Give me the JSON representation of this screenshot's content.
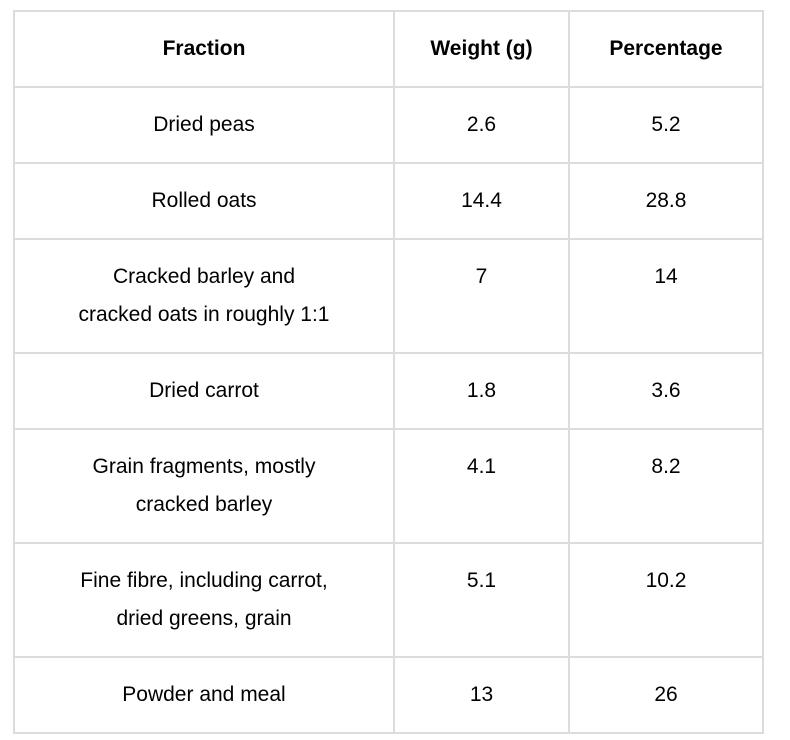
{
  "page": {
    "background_color": "#ffffff",
    "text_color": "#000000",
    "border_color": "#dcdcdc"
  },
  "table": {
    "columns": {
      "fraction": "Fraction",
      "weight": "Weight (g)",
      "percentage": "Percentage"
    },
    "rows": [
      {
        "fraction": "Dried peas",
        "weight": "2.6",
        "percentage": "5.2"
      },
      {
        "fraction": "Rolled oats",
        "weight": "14.4",
        "percentage": "28.8"
      },
      {
        "fraction": "Cracked barley and\ncracked oats in roughly 1:1",
        "weight": "7",
        "percentage": "14"
      },
      {
        "fraction": "Dried carrot",
        "weight": "1.8",
        "percentage": "3.6"
      },
      {
        "fraction": "Grain fragments, mostly\ncracked barley",
        "weight": "4.1",
        "percentage": "8.2"
      },
      {
        "fraction": "Fine fibre, including carrot,\ndried greens, grain",
        "weight": "5.1",
        "percentage": "10.2"
      },
      {
        "fraction": "Powder and meal",
        "weight": "13",
        "percentage": "26"
      }
    ]
  },
  "chart_data": {
    "type": "table",
    "title": "",
    "columns": [
      "Fraction",
      "Weight (g)",
      "Percentage"
    ],
    "rows": [
      [
        "Dried peas",
        2.6,
        5.2
      ],
      [
        "Rolled oats",
        14.4,
        28.8
      ],
      [
        "Cracked barley and cracked oats in roughly 1:1",
        7,
        14
      ],
      [
        "Dried carrot",
        1.8,
        3.6
      ],
      [
        "Grain fragments, mostly cracked barley",
        4.1,
        8.2
      ],
      [
        "Fine fibre, including carrot, dried greens, grain",
        5.1,
        10.2
      ],
      [
        "Powder and meal",
        13,
        26
      ]
    ]
  }
}
